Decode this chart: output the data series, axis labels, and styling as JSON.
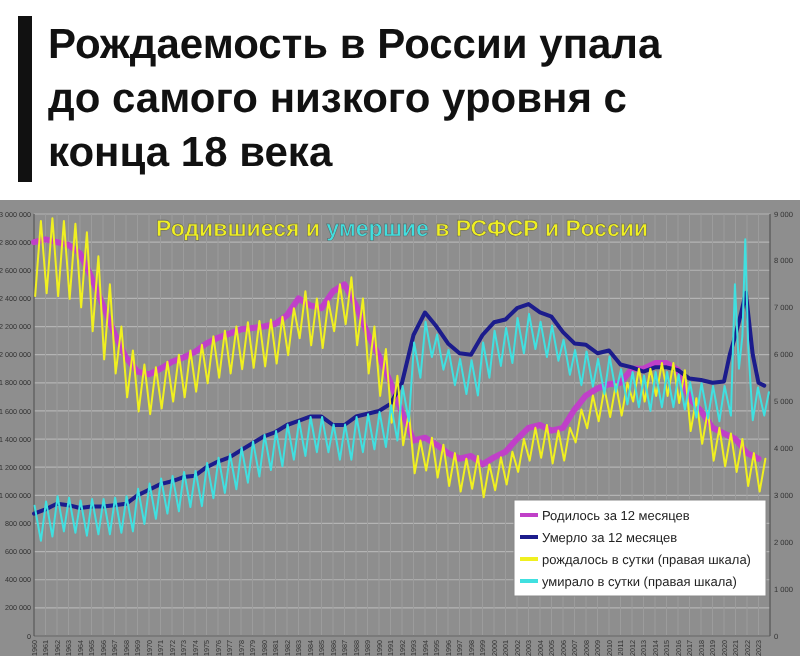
{
  "chart_data": {
    "type": "line",
    "title": "Рождаемость в России упала до самого низкого уровня с конца 18 века",
    "subtitle": "Родившиеся и умершие в РСФСР и России",
    "xlim": [
      1960,
      2024
    ],
    "xticks": [
      1960,
      1961,
      1962,
      1963,
      1964,
      1965,
      1966,
      1967,
      1968,
      1969,
      1970,
      1971,
      1972,
      1973,
      1974,
      1975,
      1976,
      1977,
      1978,
      1979,
      1980,
      1981,
      1982,
      1983,
      1984,
      1985,
      1986,
      1987,
      1988,
      1989,
      1990,
      1991,
      1992,
      1993,
      1994,
      1995,
      1996,
      1997,
      1998,
      1999,
      2000,
      2001,
      2002,
      2003,
      2004,
      2005,
      2006,
      2007,
      2008,
      2009,
      2010,
      2011,
      2012,
      2013,
      2014,
      2015,
      2016,
      2017,
      2018,
      2019,
      2020,
      2021,
      2022,
      2023
    ],
    "ylim": [
      0,
      3000000
    ],
    "yticks": [
      0,
      {
        "value": 200000,
        "label": "200 000"
      },
      {
        "value": 400000,
        "label": "400 000"
      },
      {
        "value": 600000,
        "label": "600 000"
      },
      {
        "value": 800000,
        "label": "800 000"
      },
      {
        "value": 1000000,
        "label": "1 000 000"
      },
      {
        "value": 1200000,
        "label": "1 200 000"
      },
      {
        "value": 1400000,
        "label": "1 400 000"
      },
      {
        "value": 1600000,
        "label": "1 600 000"
      },
      {
        "value": 1800000,
        "label": "1 800 000"
      },
      {
        "value": 2000000,
        "label": "2 000 000"
      },
      {
        "value": 2200000,
        "label": "2 200 000"
      },
      {
        "value": 2400000,
        "label": "2 400 000"
      },
      {
        "value": 2600000,
        "label": "2 600 000"
      },
      {
        "value": 2800000,
        "label": "2 800 000"
      },
      {
        "value": 3000000,
        "label": "3 000 000"
      }
    ],
    "y2lim": [
      0,
      9000
    ],
    "y2ticks": [
      0,
      {
        "value": 1000,
        "label": "1 000"
      },
      {
        "value": 2000,
        "label": "2 000"
      },
      {
        "value": 3000,
        "label": "3 000"
      },
      {
        "value": 4000,
        "label": "4 000"
      },
      {
        "value": 5000,
        "label": "5 000"
      },
      {
        "value": 6000,
        "label": "6 000"
      },
      {
        "value": 7000,
        "label": "7 000"
      },
      {
        "value": 8000,
        "label": "8 000"
      },
      {
        "value": 9000,
        "label": "9 000"
      }
    ],
    "grid": true,
    "legend": "bottom right",
    "series": [
      {
        "name": "рождалось в сутки (правая шкала)",
        "color": "#f0f020",
        "axis": "y2",
        "x": [
          1960.1,
          1960.6,
          1961.1,
          1961.6,
          1962.1,
          1962.6,
          1963.1,
          1963.6,
          1964.1,
          1964.6,
          1965.1,
          1965.6,
          1966.1,
          1966.6,
          1967.1,
          1967.6,
          1968.1,
          1968.6,
          1969.1,
          1969.6,
          1970.1,
          1970.6,
          1971.1,
          1971.6,
          1972.1,
          1972.6,
          1973.1,
          1973.6,
          1974.1,
          1974.6,
          1975.1,
          1975.6,
          1976.1,
          1976.6,
          1977.1,
          1977.6,
          1978.1,
          1978.6,
          1979.1,
          1979.6,
          1980.1,
          1980.6,
          1981.1,
          1981.6,
          1982.1,
          1982.6,
          1983.1,
          1983.6,
          1984.1,
          1984.6,
          1985.1,
          1985.6,
          1986.1,
          1986.6,
          1987.1,
          1987.6,
          1988.1,
          1988.6,
          1989.1,
          1989.6,
          1990.1,
          1990.6,
          1991.1,
          1991.6,
          1992.1,
          1992.6,
          1993.1,
          1993.6,
          1994.1,
          1994.6,
          1995.1,
          1995.6,
          1996.1,
          1996.6,
          1997.1,
          1997.6,
          1998.1,
          1998.6,
          1999.1,
          1999.6,
          2000.1,
          2000.6,
          2001.1,
          2001.6,
          2002.1,
          2002.6,
          2003.1,
          2003.6,
          2004.1,
          2004.6,
          2005.1,
          2005.6,
          2006.1,
          2006.6,
          2007.1,
          2007.6,
          2008.1,
          2008.6,
          2009.1,
          2009.6,
          2010.1,
          2010.6,
          2011.1,
          2011.6,
          2012.1,
          2012.6,
          2013.1,
          2013.6,
          2014.1,
          2014.6,
          2015.1,
          2015.6,
          2016.1,
          2016.6,
          2017.1,
          2017.6,
          2018.1,
          2018.6,
          2019.1,
          2019.6,
          2020.1,
          2020.6,
          2021.1,
          2021.6,
          2022.1,
          2022.6,
          2023.1,
          2023.6
        ],
        "values": [
          7250,
          8850,
          7310,
          8910,
          7250,
          8850,
          7190,
          8790,
          7010,
          8610,
          6500,
          8100,
          5900,
          7500,
          5600,
          6600,
          5090,
          6090,
          4790,
          5790,
          4730,
          5730,
          4850,
          5850,
          5000,
          6000,
          5090,
          6090,
          5210,
          6210,
          5390,
          6390,
          5510,
          6510,
          5600,
          6600,
          5690,
          6690,
          5720,
          6720,
          5750,
          6750,
          5810,
          6810,
          5990,
          6990,
          6350,
          7350,
          6200,
          7200,
          6140,
          7140,
          6500,
          7500,
          6650,
          7650,
          6200,
          7200,
          5600,
          6600,
          5120,
          6120,
          4550,
          5550,
          4070,
          4770,
          3470,
          4170,
          3530,
          4230,
          3380,
          4080,
          3200,
          3900,
          3080,
          3780,
          3140,
          3840,
          2960,
          3660,
          3110,
          3810,
          3230,
          3930,
          3500,
          4200,
          3740,
          4440,
          3800,
          4500,
          3680,
          4380,
          3740,
          4440,
          4130,
          4830,
          4430,
          5130,
          4580,
          5280,
          4670,
          5370,
          4700,
          5400,
          5000,
          5700,
          5000,
          5700,
          5120,
          5820,
          5120,
          5820,
          4970,
          5670,
          4370,
          5070,
          4100,
          4800,
          3740,
          4440,
          3620,
          4320,
          3500,
          4200,
          3200,
          3900,
          3080,
          3780
        ]
      },
      {
        "name": "умирало в сутки (правая шкала)",
        "color": "#40e0e0",
        "axis": "y2",
        "x": [
          1960.05,
          1960.6,
          1961.05,
          1961.6,
          1962.05,
          1962.6,
          1963.05,
          1963.6,
          1964.05,
          1964.6,
          1965.05,
          1965.6,
          1966.05,
          1966.6,
          1967.05,
          1967.6,
          1968.05,
          1968.6,
          1969.05,
          1969.6,
          1970.05,
          1970.6,
          1971.05,
          1971.6,
          1972.05,
          1972.6,
          1973.05,
          1973.6,
          1974.05,
          1974.6,
          1975.05,
          1975.6,
          1976.05,
          1976.6,
          1977.05,
          1977.6,
          1978.05,
          1978.6,
          1979.05,
          1979.6,
          1980.05,
          1980.6,
          1981.05,
          1981.6,
          1982.05,
          1982.6,
          1983.05,
          1983.6,
          1984.05,
          1984.6,
          1985.05,
          1985.6,
          1986.05,
          1986.6,
          1987.05,
          1987.6,
          1988.05,
          1988.6,
          1989.05,
          1989.6,
          1990.05,
          1990.6,
          1991.05,
          1991.6,
          1992.05,
          1992.6,
          1993.05,
          1993.6,
          1994.05,
          1994.6,
          1995.05,
          1995.6,
          1996.05,
          1996.6,
          1997.05,
          1997.6,
          1998.05,
          1998.6,
          1999.05,
          1999.6,
          2000.05,
          2000.6,
          2001.05,
          2001.6,
          2002.05,
          2002.6,
          2003.05,
          2003.6,
          2004.05,
          2004.6,
          2005.05,
          2005.6,
          2006.05,
          2006.6,
          2007.05,
          2007.6,
          2008.05,
          2008.6,
          2009.05,
          2009.6,
          2010.05,
          2010.6,
          2011.05,
          2011.6,
          2012.05,
          2012.6,
          2013.05,
          2013.6,
          2014.05,
          2014.6,
          2015.05,
          2015.6,
          2016.05,
          2016.6,
          2017.05,
          2017.6,
          2018.05,
          2018.6,
          2019.05,
          2019.6,
          2020.05,
          2020.6,
          2020.95,
          2021.3,
          2021.6,
          2021.85,
          2022.1,
          2022.5,
          2022.95,
          2023.5,
          2023.9
        ],
        "values": [
          2780,
          2030,
          2870,
          2120,
          2980,
          2230,
          2950,
          2200,
          2890,
          2140,
          2920,
          2170,
          2920,
          2170,
          2950,
          2200,
          2980,
          2230,
          3140,
          2390,
          3250,
          2500,
          3360,
          2610,
          3410,
          2660,
          3500,
          2750,
          3520,
          2770,
          3690,
          2940,
          3800,
          3050,
          3880,
          3130,
          4020,
          3270,
          4150,
          3400,
          4290,
          3540,
          4370,
          3620,
          4510,
          3760,
          4590,
          3840,
          4670,
          3920,
          4670,
          3920,
          4510,
          3760,
          4510,
          3760,
          4670,
          3920,
          4730,
          3980,
          4780,
          4030,
          4920,
          4170,
          5330,
          4580,
          6260,
          5510,
          6700,
          5950,
          6430,
          5680,
          6100,
          5350,
          5910,
          5160,
          5880,
          5130,
          6260,
          5510,
          6510,
          5760,
          6570,
          5820,
          6780,
          6030,
          6870,
          6120,
          6700,
          5950,
          6620,
          5870,
          6320,
          5570,
          6100,
          5350,
          6070,
          5320,
          5910,
          5160,
          5960,
          5210,
          5690,
          4940,
          5630,
          4880,
          5550,
          4800,
          5630,
          4880,
          5630,
          4880,
          5580,
          4830,
          5410,
          4660,
          5390,
          4640,
          5330,
          4580,
          5330,
          4700,
          7500,
          5700,
          6400,
          8460,
          6200,
          4600,
          5300,
          4700,
          5200
        ]
      },
      {
        "name": "Родилось за 12 месяцев",
        "color": "#c040c8",
        "x": [
          1960,
          1961,
          1962,
          1963,
          1964,
          1965,
          1966,
          1967,
          1968,
          1969,
          1970,
          1971,
          1972,
          1973,
          1974,
          1975,
          1976,
          1977,
          1978,
          1979,
          1980,
          1981,
          1982,
          1983,
          1984,
          1985,
          1986,
          1987,
          1988,
          1989,
          1990,
          1991,
          1992,
          1993,
          1994,
          1995,
          1996,
          1997,
          1998,
          1999,
          2000,
          2001,
          2002,
          2003,
          2004,
          2005,
          2006,
          2007,
          2008,
          2009,
          2010,
          2011,
          2012,
          2013,
          2014,
          2015,
          2016,
          2017,
          2018,
          2019,
          2020,
          2021,
          2022,
          2023
        ],
        "values": [
          2800000,
          2820000,
          2800000,
          2780000,
          2720000,
          2550000,
          2350000,
          2150000,
          1980000,
          1880000,
          1860000,
          1900000,
          1950000,
          1980000,
          2020000,
          2080000,
          2120000,
          2150000,
          2180000,
          2190000,
          2200000,
          2220000,
          2280000,
          2400000,
          2350000,
          2330000,
          2450000,
          2500000,
          2350000,
          2150000,
          1990000,
          1800000,
          1590000,
          1390000,
          1410000,
          1360000,
          1300000,
          1260000,
          1280000,
          1220000,
          1270000,
          1310000,
          1400000,
          1480000,
          1500000,
          1460000,
          1480000,
          1610000,
          1710000,
          1760000,
          1790000,
          1800000,
          1900000,
          1900000,
          1940000,
          1940000,
          1890000,
          1690000,
          1600000,
          1480000,
          1440000,
          1400000,
          1300000,
          1260000
        ]
      },
      {
        "name": "Умерло за 12 месяцев",
        "color": "#1c1c8c",
        "x": [
          1960,
          1961,
          1962,
          1963,
          1964,
          1965,
          1966,
          1967,
          1968,
          1969,
          1970,
          1971,
          1972,
          1973,
          1974,
          1975,
          1976,
          1977,
          1978,
          1979,
          1980,
          1981,
          1982,
          1983,
          1984,
          1985,
          1986,
          1987,
          1988,
          1989,
          1990,
          1991,
          1992,
          1993,
          1994,
          1995,
          1996,
          1997,
          1998,
          1999,
          2000,
          2001,
          2002,
          2003,
          2004,
          2005,
          2006,
          2007,
          2008,
          2009,
          2010,
          2011,
          2012,
          2013,
          2014,
          2015,
          2016,
          2017,
          2018,
          2019,
          2020,
          2020.5,
          2021,
          2021.5,
          2021.9,
          2022.5,
          2023,
          2023.5
        ],
        "values": [
          870000,
          900000,
          940000,
          930000,
          910000,
          920000,
          920000,
          930000,
          940000,
          1000000,
          1040000,
          1080000,
          1100000,
          1130000,
          1140000,
          1200000,
          1240000,
          1270000,
          1320000,
          1370000,
          1420000,
          1450000,
          1500000,
          1530000,
          1560000,
          1560000,
          1500000,
          1500000,
          1560000,
          1580000,
          1600000,
          1650000,
          1800000,
          2140000,
          2300000,
          2200000,
          2080000,
          2010000,
          2000000,
          2140000,
          2230000,
          2250000,
          2330000,
          2360000,
          2300000,
          2270000,
          2160000,
          2080000,
          2070000,
          2010000,
          2030000,
          1930000,
          1910000,
          1880000,
          1910000,
          1910000,
          1890000,
          1830000,
          1820000,
          1800000,
          1810000,
          2000000,
          2140000,
          2300000,
          2440000,
          2000000,
          1800000,
          1780000
        ]
      }
    ]
  }
}
